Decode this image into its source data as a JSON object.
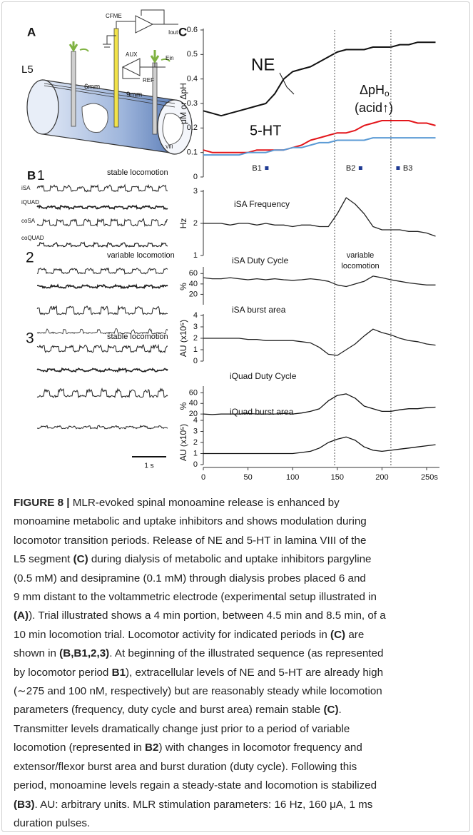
{
  "panel_a": {
    "label": "A",
    "segment": "L5",
    "distance_1": "6mm",
    "distance_2": "9mm",
    "electrode": "CFME",
    "aux": "AUX",
    "ein": "Ein",
    "ref": "REF",
    "iout": "Iout",
    "lamina": "VIII"
  },
  "panel_b": {
    "label": "B",
    "groups": [
      {
        "number": "1",
        "title": "stable locomotion",
        "traces": [
          "iSA",
          "iQUAD",
          "coSA",
          "coQUAD"
        ]
      },
      {
        "number": "2",
        "title": "variable locomotion"
      },
      {
        "number": "3",
        "title": "stable locomotion"
      }
    ],
    "scale_bar": "1 s"
  },
  "panel_c": {
    "label": "C"
  },
  "chart_data": [
    {
      "type": "line",
      "ylabel": "μM or ΔpH",
      "x": [
        0,
        10,
        20,
        30,
        40,
        50,
        60,
        70,
        80,
        90,
        100,
        110,
        120,
        130,
        140,
        150,
        160,
        170,
        180,
        190,
        200,
        210,
        220,
        230,
        240,
        250,
        260
      ],
      "xlim": [
        0,
        250
      ],
      "ylim": [
        0,
        0.6
      ],
      "yticks": [
        0,
        0.1,
        0.2,
        0.3,
        0.4,
        0.5,
        0.6
      ],
      "series": [
        {
          "name": "NE",
          "color": "#111111",
          "values": [
            0.27,
            0.26,
            0.25,
            0.26,
            0.27,
            0.28,
            0.29,
            0.3,
            0.34,
            0.4,
            0.43,
            0.44,
            0.45,
            0.47,
            0.49,
            0.51,
            0.52,
            0.52,
            0.52,
            0.53,
            0.53,
            0.53,
            0.54,
            0.54,
            0.55,
            0.55,
            0.55
          ]
        },
        {
          "name": "5-HT",
          "color": "#e3161b",
          "values": [
            0.11,
            0.1,
            0.1,
            0.1,
            0.1,
            0.1,
            0.11,
            0.11,
            0.11,
            0.11,
            0.12,
            0.13,
            0.15,
            0.16,
            0.17,
            0.18,
            0.18,
            0.19,
            0.21,
            0.22,
            0.23,
            0.23,
            0.23,
            0.23,
            0.22,
            0.22,
            0.21
          ]
        },
        {
          "name": "ΔpH",
          "subscript": "o",
          "color": "#5b9bd5",
          "values": [
            0.09,
            0.09,
            0.09,
            0.09,
            0.09,
            0.1,
            0.1,
            0.1,
            0.11,
            0.11,
            0.12,
            0.12,
            0.13,
            0.14,
            0.14,
            0.15,
            0.15,
            0.15,
            0.15,
            0.16,
            0.16,
            0.16,
            0.16,
            0.16,
            0.16,
            0.16,
            0.16
          ]
        }
      ],
      "note": "(acid↑)",
      "vlines": [
        147,
        210
      ],
      "periods": [
        {
          "label": "B1",
          "x": 71
        },
        {
          "label": "B2",
          "x": 176
        },
        {
          "label": "B3",
          "x": 218
        }
      ],
      "period_color": "#1f3a93"
    },
    {
      "type": "line",
      "title": "iSA Frequency",
      "ylabel": "Hz",
      "color": "#222222",
      "x": [
        0,
        10,
        20,
        30,
        40,
        50,
        60,
        70,
        80,
        90,
        100,
        110,
        120,
        130,
        140,
        150,
        160,
        170,
        180,
        190,
        200,
        210,
        220,
        230,
        240,
        250,
        260
      ],
      "xlim": [
        0,
        250
      ],
      "ylim": [
        1,
        3
      ],
      "yticks": [
        1,
        2,
        3
      ],
      "values": [
        2.0,
        2.0,
        2.0,
        1.95,
        2.0,
        2.0,
        1.95,
        2.0,
        1.95,
        1.95,
        1.9,
        1.95,
        1.95,
        1.9,
        1.9,
        2.3,
        2.8,
        2.6,
        2.3,
        1.9,
        1.8,
        1.8,
        1.8,
        1.75,
        1.75,
        1.7,
        1.6
      ]
    },
    {
      "type": "line",
      "title": "iSA Duty Cycle",
      "ylabel": "%",
      "color": "#222222",
      "annotation": [
        "variable",
        "locomotion"
      ],
      "x": [
        0,
        10,
        20,
        30,
        40,
        50,
        60,
        70,
        80,
        90,
        100,
        110,
        120,
        130,
        140,
        150,
        160,
        170,
        180,
        190,
        200,
        210,
        220,
        230,
        240,
        250,
        260
      ],
      "xlim": [
        0,
        250
      ],
      "ylim": [
        0,
        70
      ],
      "yticks": [
        20,
        40,
        60
      ],
      "values": [
        52,
        50,
        50,
        52,
        50,
        48,
        50,
        48,
        50,
        48,
        47,
        48,
        50,
        48,
        45,
        38,
        35,
        40,
        45,
        55,
        52,
        48,
        45,
        42,
        40,
        38,
        38
      ]
    },
    {
      "type": "line",
      "title": "iSA burst area",
      "ylabel": "AU (x10⁵)",
      "color": "#222222",
      "x": [
        0,
        10,
        20,
        30,
        40,
        50,
        60,
        70,
        80,
        90,
        100,
        110,
        120,
        130,
        140,
        150,
        160,
        170,
        180,
        190,
        200,
        210,
        220,
        230,
        240,
        250,
        260
      ],
      "xlim": [
        0,
        250
      ],
      "ylim": [
        0,
        4
      ],
      "yticks": [
        0,
        1,
        2,
        3,
        4
      ],
      "values": [
        2.0,
        2.0,
        2.0,
        2.0,
        2.0,
        1.9,
        1.9,
        1.8,
        1.8,
        1.8,
        1.8,
        1.7,
        1.6,
        1.2,
        0.6,
        0.5,
        1.0,
        1.5,
        2.2,
        2.8,
        2.5,
        2.3,
        2.0,
        1.8,
        1.7,
        1.5,
        1.4
      ]
    },
    {
      "type": "line",
      "title": "iQuad Duty Cycle",
      "ylabel": "%",
      "color": "#111111",
      "x": [
        0,
        10,
        20,
        30,
        40,
        50,
        60,
        70,
        80,
        90,
        100,
        110,
        120,
        130,
        140,
        150,
        160,
        170,
        180,
        190,
        200,
        210,
        220,
        230,
        240,
        250,
        260
      ],
      "xlim": [
        0,
        250
      ],
      "ylim": [
        0,
        70
      ],
      "yticks": [
        20,
        40,
        60
      ],
      "values": [
        20,
        19,
        20,
        20,
        20,
        21,
        20,
        20,
        20,
        21,
        20,
        22,
        25,
        30,
        45,
        55,
        58,
        50,
        35,
        30,
        25,
        25,
        28,
        30,
        30,
        32,
        33
      ]
    },
    {
      "type": "line",
      "title": "iQuad burst area",
      "ylabel": "AU (x10⁵)",
      "color": "#111111",
      "x": [
        0,
        10,
        20,
        30,
        40,
        50,
        60,
        70,
        80,
        90,
        100,
        110,
        120,
        130,
        140,
        150,
        160,
        170,
        180,
        190,
        200,
        210,
        220,
        230,
        240,
        250,
        260
      ],
      "xlim": [
        0,
        250
      ],
      "ylim": [
        0,
        4
      ],
      "yticks": [
        0,
        1,
        2,
        3,
        4
      ],
      "xticks": [
        0,
        50,
        100,
        150,
        200,
        {
          "value": 250,
          "label": "250s"
        }
      ],
      "values": [
        1.0,
        1.0,
        1.0,
        1.0,
        1.0,
        1.0,
        1.0,
        1.0,
        1.0,
        1.0,
        1.0,
        1.1,
        1.2,
        1.5,
        2.0,
        2.3,
        2.5,
        2.2,
        1.6,
        1.3,
        1.2,
        1.3,
        1.4,
        1.5,
        1.6,
        1.7,
        1.8
      ]
    }
  ],
  "caption": {
    "lines": [
      [
        {
          "text": "FIGURE 8 |",
          "bold": true
        },
        {
          "text": " MLR-evoked spinal monoamine release is enhanced by"
        }
      ],
      [
        {
          "text": "monoamine metabolic and uptake inhibitors and shows modulation during"
        }
      ],
      [
        {
          "text": "locomotor transition periods. Release of NE and 5-HT in lamina VIII of the"
        }
      ],
      [
        {
          "text": "L5 segment "
        },
        {
          "text": "(C)",
          "bold": true
        },
        {
          "text": " during dialysis of metabolic and uptake inhibitors pargyline"
        }
      ],
      [
        {
          "text": "(0.5 mM) and desipramine (0.1 mM) through dialysis probes placed 6 and"
        }
      ],
      [
        {
          "text": "9 mm distant to the voltammetric electrode (experimental setup illustrated in"
        }
      ],
      [
        {
          "text": "(A)",
          "bold": true
        },
        {
          "text": "). Trial illustrated shows a 4 min portion, between 4.5 min and 8.5 min, of a"
        }
      ],
      [
        {
          "text": "10 min locomotion trial. Locomotor activity for indicated periods in "
        },
        {
          "text": "(C)",
          "bold": true
        },
        {
          "text": " are"
        }
      ],
      [
        {
          "text": "shown in "
        },
        {
          "text": "(B,B1,2,3)",
          "bold": true
        },
        {
          "text": ". At beginning of the illustrated sequence (as represented"
        }
      ],
      [
        {
          "text": "by locomotor period "
        },
        {
          "text": "B1",
          "bold": true
        },
        {
          "text": "), extracellular levels of NE and 5-HT are already high"
        }
      ],
      [
        {
          "text": "(∼275 and 100 nM, respectively) but are reasonably steady while locomotion"
        }
      ],
      [
        {
          "text": "parameters (frequency, duty cycle and burst area) remain stable "
        },
        {
          "text": "(C)",
          "bold": true
        },
        {
          "text": "."
        }
      ],
      [
        {
          "text": "Transmitter levels dramatically change just prior to a period of variable"
        }
      ],
      [
        {
          "text": "locomotion (represented in "
        },
        {
          "text": "B2",
          "bold": true
        },
        {
          "text": ") with changes in locomotor frequency and"
        }
      ],
      [
        {
          "text": "extensor/flexor burst area and burst duration (duty cycle). Following this"
        }
      ],
      [
        {
          "text": "period, monoamine levels regain a steady-state and locomotion is stabilized"
        }
      ],
      [
        {
          "text": "(B3)",
          "bold": true
        },
        {
          "text": ". AU: arbitrary units. MLR stimulation parameters: 16 Hz, 160 μA, 1 ms"
        }
      ],
      [
        {
          "text": "duration pulses."
        }
      ]
    ]
  }
}
